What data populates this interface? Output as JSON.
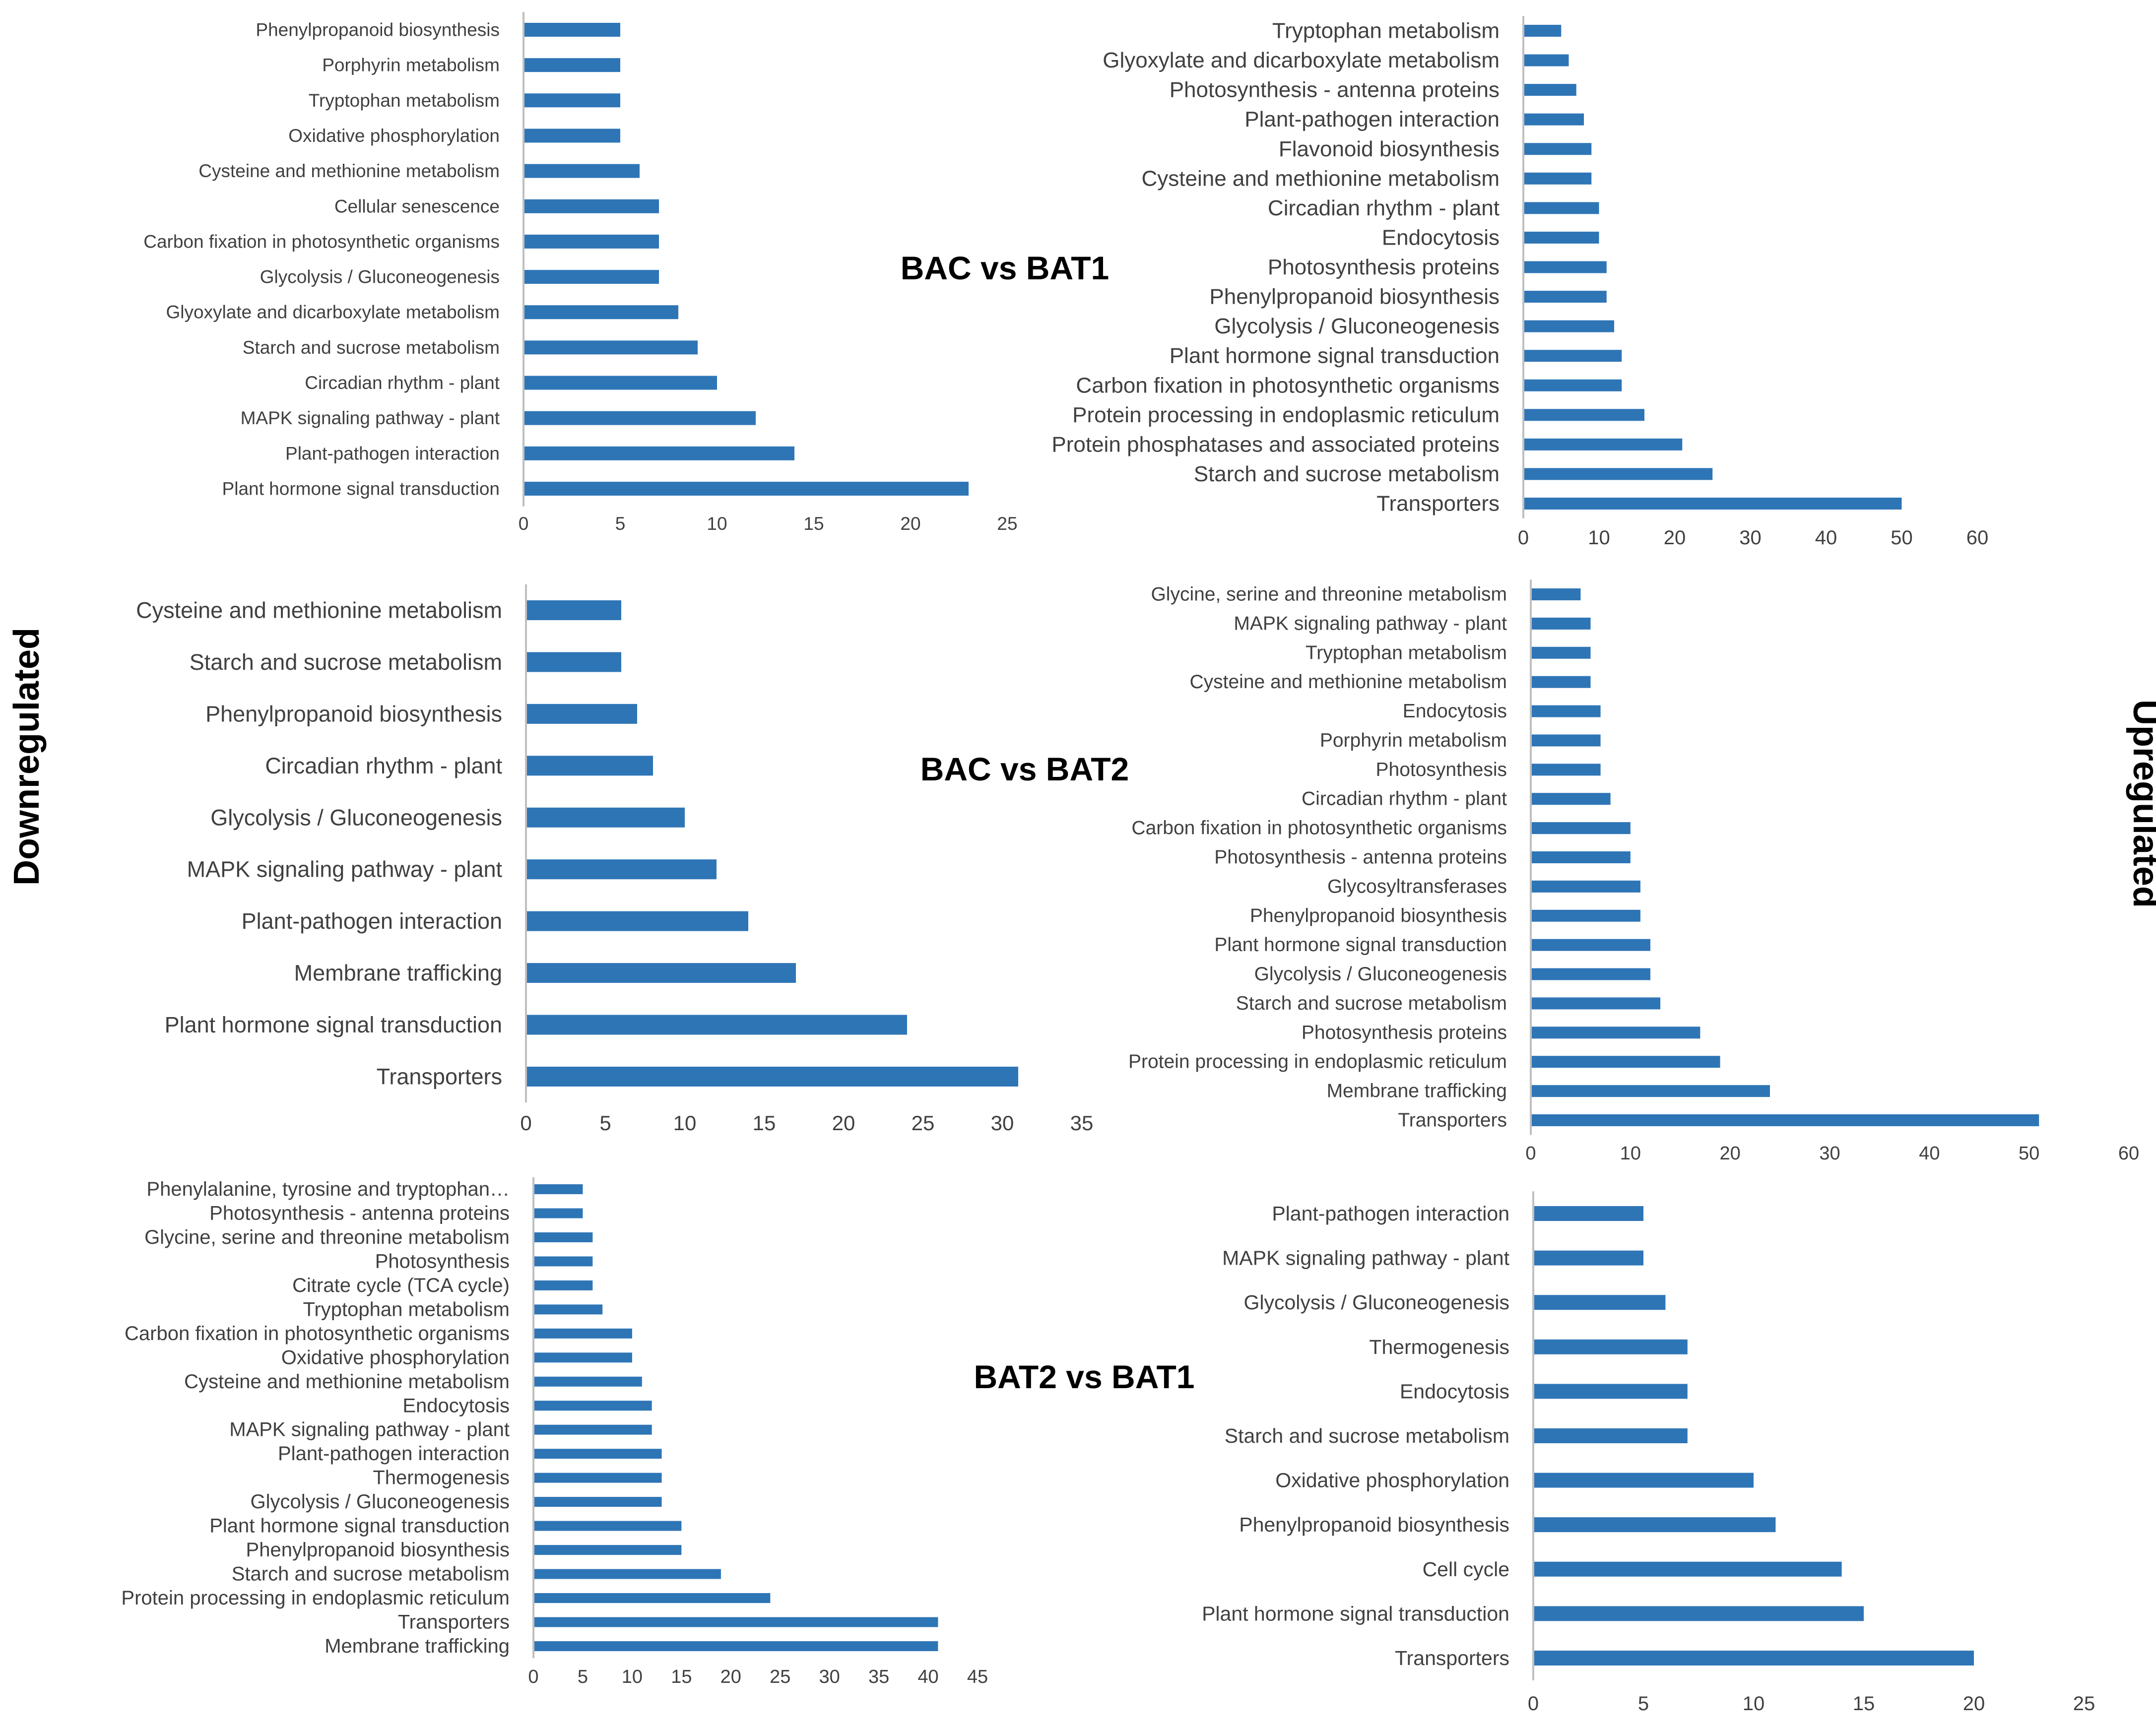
{
  "side_labels": {
    "left": "Downregulated",
    "right": "Upregulated"
  },
  "colors": {
    "bar": "#2e75b6",
    "axis": "#bfbfbf",
    "text": "#404040"
  },
  "chart_data": [
    {
      "id": "bac-bat1-down",
      "type": "bar",
      "orientation": "horizontal",
      "title": "BAC vs BAT1",
      "direction": "Downregulated",
      "categories": [
        "Phenylpropanoid biosynthesis",
        "Porphyrin metabolism",
        "Tryptophan metabolism",
        "Oxidative phosphorylation",
        "Cysteine and methionine metabolism",
        "Cellular senescence",
        "Carbon fixation in photosynthetic organisms",
        "Glycolysis / Gluconeogenesis",
        "Glyoxylate and dicarboxylate metabolism",
        "Starch and sucrose metabolism",
        "Circadian rhythm - plant",
        "MAPK signaling pathway - plant",
        "Plant-pathogen interaction",
        "Plant hormone signal transduction"
      ],
      "values": [
        5,
        5,
        5,
        5,
        6,
        7,
        7,
        7,
        8,
        9,
        10,
        12,
        14,
        23
      ],
      "xlim": [
        0,
        25
      ],
      "xticks": [
        "0",
        "5",
        "10",
        "15",
        "20",
        "25"
      ]
    },
    {
      "id": "bac-bat1-up",
      "type": "bar",
      "orientation": "horizontal",
      "title": "",
      "direction": "Upregulated",
      "categories": [
        "Tryptophan metabolism",
        "Glyoxylate and dicarboxylate metabolism",
        "Photosynthesis - antenna proteins",
        "Plant-pathogen interaction",
        "Flavonoid biosynthesis",
        "Cysteine and methionine metabolism",
        "Circadian rhythm - plant",
        "Endocytosis",
        "Photosynthesis proteins",
        "Phenylpropanoid biosynthesis",
        "Glycolysis / Gluconeogenesis",
        "Plant hormone signal transduction",
        "Carbon fixation in photosynthetic organisms",
        "Protein processing in endoplasmic reticulum",
        "Protein phosphatases and associated proteins",
        "Starch and sucrose metabolism",
        "Transporters"
      ],
      "values": [
        5,
        6,
        7,
        8,
        9,
        9,
        10,
        10,
        11,
        11,
        12,
        13,
        13,
        16,
        21,
        25,
        50
      ],
      "xlim": [
        0,
        60
      ],
      "xticks": [
        "0",
        "10",
        "20",
        "30",
        "40",
        "50",
        "60"
      ]
    },
    {
      "id": "bac-bat2-down",
      "type": "bar",
      "orientation": "horizontal",
      "title": "BAC vs BAT2",
      "direction": "Downregulated",
      "categories": [
        "Cysteine and methionine metabolism",
        "Starch and sucrose metabolism",
        "Phenylpropanoid biosynthesis",
        "Circadian rhythm - plant",
        "Glycolysis / Gluconeogenesis",
        "MAPK signaling pathway - plant",
        "Plant-pathogen interaction",
        "Membrane trafficking",
        "Plant hormone signal transduction",
        "Transporters"
      ],
      "values": [
        6,
        6,
        7,
        8,
        10,
        12,
        14,
        17,
        24,
        31
      ],
      "xlim": [
        0,
        35
      ],
      "xticks": [
        "0",
        "5",
        "10",
        "15",
        "20",
        "25",
        "30",
        "35"
      ]
    },
    {
      "id": "bac-bat2-up",
      "type": "bar",
      "orientation": "horizontal",
      "title": "",
      "direction": "Upregulated",
      "categories": [
        "Glycine, serine and threonine metabolism",
        "MAPK signaling pathway - plant",
        "Tryptophan metabolism",
        "Cysteine and methionine metabolism",
        "Endocytosis",
        "Porphyrin metabolism",
        "Photosynthesis",
        "Circadian rhythm - plant",
        "Carbon fixation in photosynthetic organisms",
        "Photosynthesis - antenna proteins",
        "Glycosyltransferases",
        "Phenylpropanoid biosynthesis",
        "Plant hormone signal transduction",
        "Glycolysis / Gluconeogenesis",
        "Starch and sucrose metabolism",
        "Photosynthesis proteins",
        "Protein processing in endoplasmic reticulum",
        "Membrane trafficking",
        "Transporters"
      ],
      "values": [
        5,
        6,
        6,
        6,
        7,
        7,
        7,
        8,
        10,
        10,
        11,
        11,
        12,
        12,
        13,
        17,
        19,
        24,
        51
      ],
      "xlim": [
        0,
        60
      ],
      "xticks": [
        "0",
        "10",
        "20",
        "30",
        "40",
        "50",
        "60"
      ]
    },
    {
      "id": "bat2-bat1-down",
      "type": "bar",
      "orientation": "horizontal",
      "title": "BAT2 vs BAT1",
      "direction": "Downregulated",
      "categories": [
        "Phenylalanine, tyrosine and tryptophan…",
        "Photosynthesis - antenna proteins",
        "Glycine, serine and threonine metabolism",
        "Photosynthesis",
        "Citrate cycle (TCA cycle)",
        "Tryptophan metabolism",
        "Carbon fixation in photosynthetic organisms",
        "Oxidative phosphorylation",
        "Cysteine and methionine metabolism",
        "Endocytosis",
        "MAPK signaling pathway - plant",
        "Plant-pathogen interaction",
        "Thermogenesis",
        "Glycolysis / Gluconeogenesis",
        "Plant hormone signal transduction",
        "Phenylpropanoid biosynthesis",
        "Starch and sucrose metabolism",
        "Protein processing in endoplasmic reticulum",
        "Transporters",
        "Membrane trafficking"
      ],
      "values": [
        5,
        5,
        6,
        6,
        6,
        7,
        10,
        10,
        11,
        12,
        12,
        13,
        13,
        13,
        15,
        15,
        19,
        24,
        41,
        41
      ],
      "xlim": [
        0,
        45
      ],
      "xticks": [
        "0",
        "5",
        "10",
        "15",
        "20",
        "25",
        "30",
        "35",
        "40",
        "45"
      ]
    },
    {
      "id": "bat2-bat1-up",
      "type": "bar",
      "orientation": "horizontal",
      "title": "",
      "direction": "Upregulated",
      "categories": [
        "Plant-pathogen interaction",
        "MAPK signaling pathway - plant",
        "Glycolysis / Gluconeogenesis",
        "Thermogenesis",
        "Endocytosis",
        "Starch and sucrose metabolism",
        "Oxidative phosphorylation",
        "Phenylpropanoid biosynthesis",
        "Cell cycle",
        "Plant hormone signal transduction",
        "Transporters"
      ],
      "values": [
        5,
        5,
        6,
        7,
        7,
        7,
        10,
        11,
        14,
        15,
        20
      ],
      "xlim": [
        0,
        25
      ],
      "xticks": [
        "0",
        "5",
        "10",
        "15",
        "20",
        "25"
      ]
    }
  ]
}
